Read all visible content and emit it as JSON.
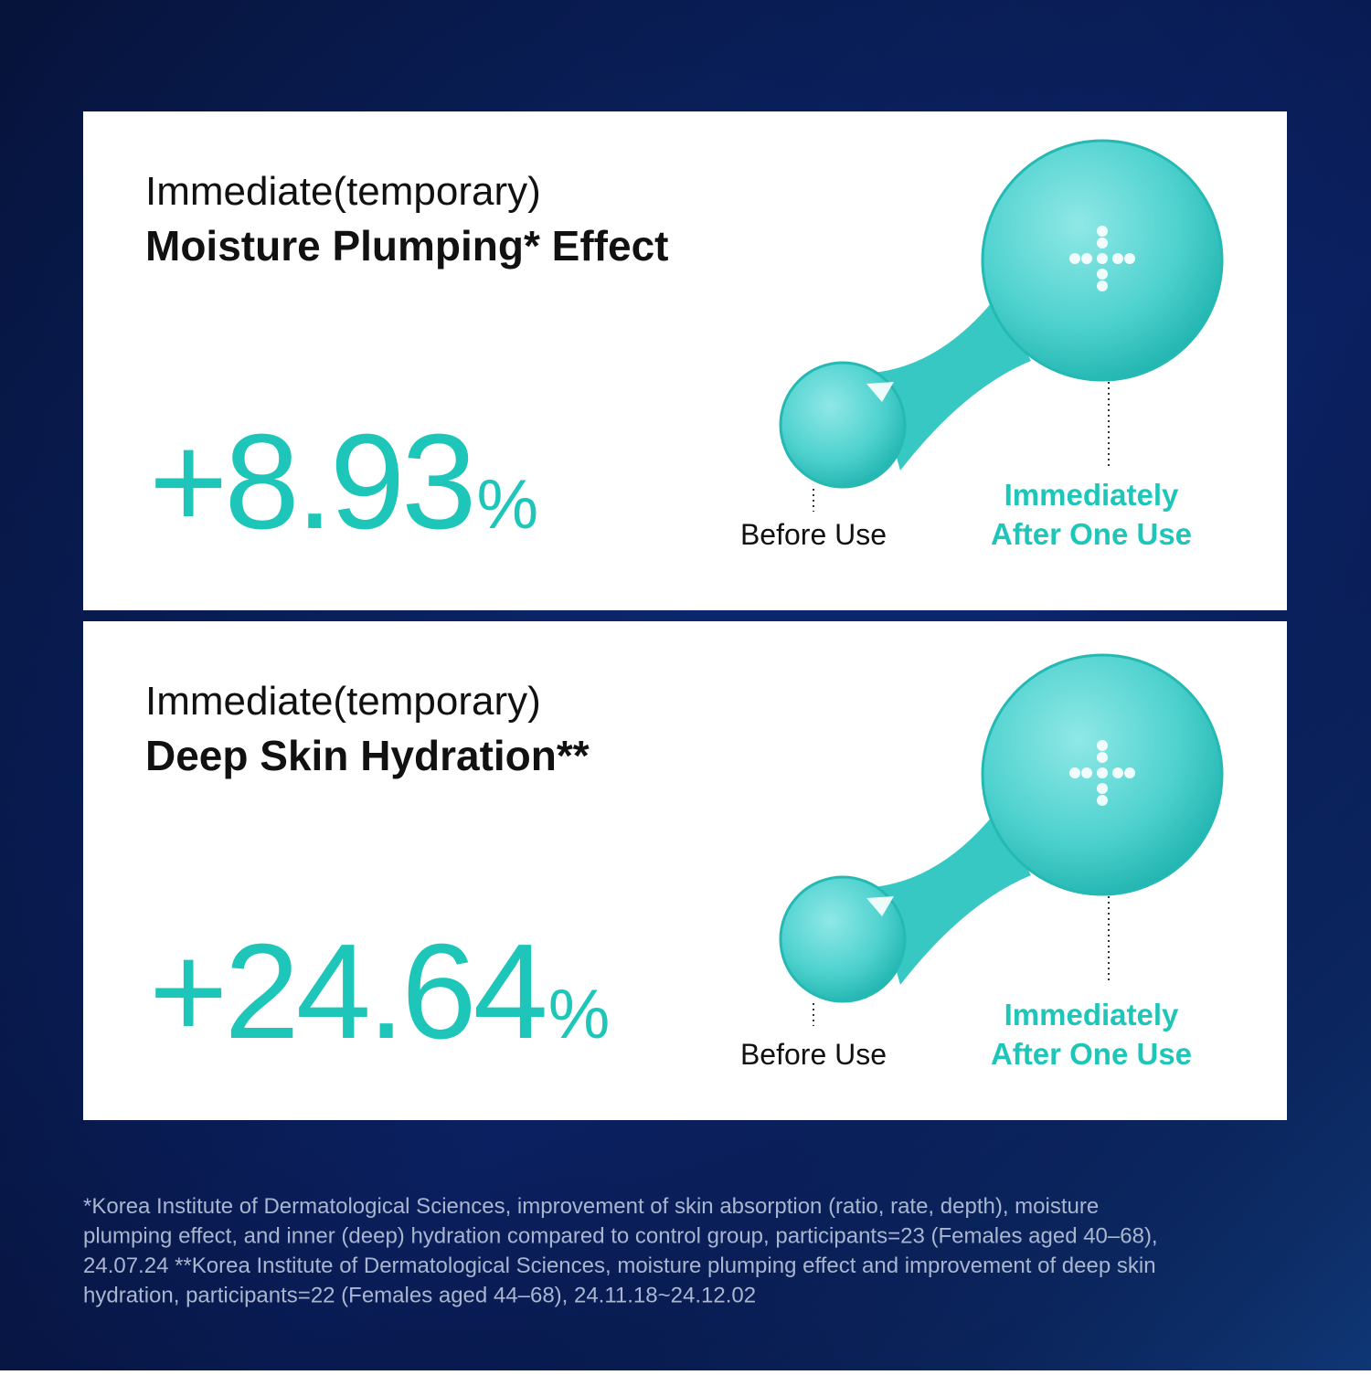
{
  "panels": [
    {
      "title_line1": "Immediate(temporary)",
      "title_line2": "Moisture Plumping* Effect",
      "stat": "+8.93",
      "unit": "%",
      "before_label": "Before Use",
      "after_label_line1": "Immediately",
      "after_label_line2": "After One Use"
    },
    {
      "title_line1": "Immediate(temporary)",
      "title_line2": "Deep Skin Hydration**",
      "stat": "+24.64",
      "unit": "%",
      "before_label": "Before Use",
      "after_label_line1": "Immediately",
      "after_label_line2": "After One Use"
    }
  ],
  "footnote": [
    "*Korea Institute of Dermatological Sciences, improvement of skin absorption (ratio, rate, depth), moisture",
    "plumping effect, and inner (deep) hydration compared to control group, participants=23 (Females aged 40–68),",
    "24.07.24 **Korea Institute of Dermatological Sciences, moisture plumping effect and improvement of deep skin",
    "hydration, participants=22 (Females aged 44–68), 24.11.18~24.12.02"
  ]
}
